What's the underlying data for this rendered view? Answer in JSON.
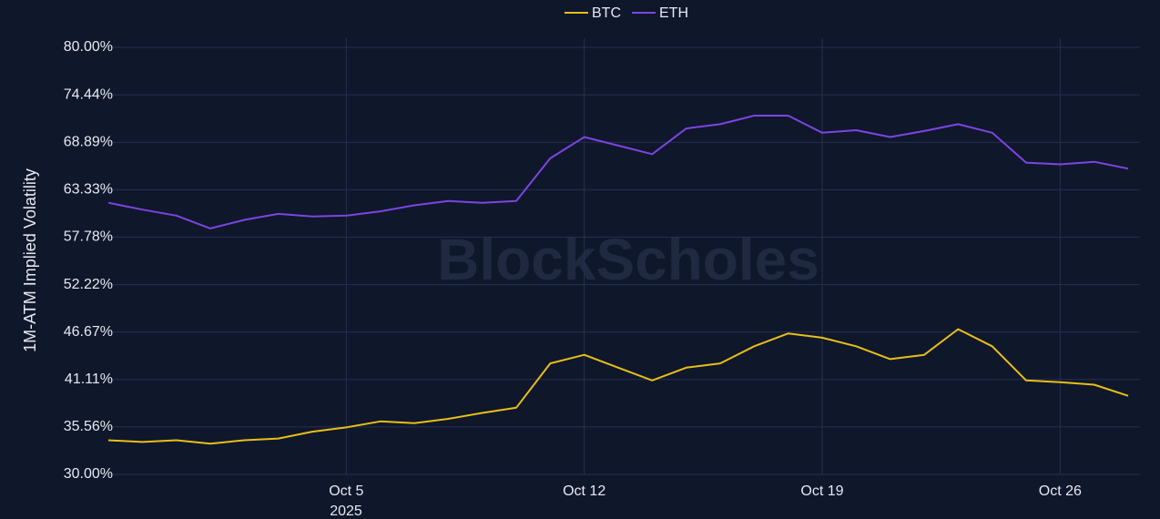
{
  "chart_data": {
    "type": "line",
    "y_axis_label": "1M-ATM Implied Volatility",
    "watermark": "BlockScholes",
    "x_year_label": "2025",
    "x": [
      "2025-09-28",
      "2025-09-29",
      "2025-09-30",
      "2025-10-01",
      "2025-10-02",
      "2025-10-03",
      "2025-10-04",
      "2025-10-05",
      "2025-10-06",
      "2025-10-07",
      "2025-10-08",
      "2025-10-09",
      "2025-10-10",
      "2025-10-11",
      "2025-10-12",
      "2025-10-13",
      "2025-10-14",
      "2025-10-15",
      "2025-10-16",
      "2025-10-17",
      "2025-10-18",
      "2025-10-19",
      "2025-10-20",
      "2025-10-21",
      "2025-10-22",
      "2025-10-23",
      "2025-10-24",
      "2025-10-25",
      "2025-10-26",
      "2025-10-27",
      "2025-10-28"
    ],
    "series": [
      {
        "name": "BTC",
        "color": "#e8bf17",
        "values": [
          34,
          33.8,
          34,
          33.6,
          34,
          34.2,
          35,
          35.5,
          36.2,
          36,
          36.5,
          37.2,
          37.8,
          43,
          44,
          42.5,
          41,
          42.5,
          43,
          45,
          46.5,
          46,
          45,
          43.5,
          44,
          47,
          45,
          41,
          40.8,
          40.5,
          39.2
        ]
      },
      {
        "name": "ETH",
        "color": "#7b45e0",
        "values": [
          61.8,
          61,
          60.3,
          58.8,
          59.8,
          60.5,
          60.2,
          60.3,
          60.8,
          61.5,
          62,
          61.8,
          62,
          67,
          69.5,
          68.5,
          67.5,
          70.5,
          71,
          72,
          72,
          70,
          70.3,
          69.5,
          70.2,
          71,
          70,
          66.5,
          66.3,
          66.6,
          65.8
        ]
      }
    ],
    "xlim": [
      "2025-09-28",
      "2025-10-28"
    ],
    "xticks": [
      {
        "value": "2025-10-05",
        "label": "Oct 5"
      },
      {
        "value": "2025-10-12",
        "label": "Oct 12"
      },
      {
        "value": "2025-10-19",
        "label": "Oct 19"
      },
      {
        "value": "2025-10-26",
        "label": "Oct 26"
      }
    ],
    "ylim": [
      30,
      80
    ],
    "yticks": [
      {
        "value": 30,
        "label": "30.00%"
      },
      {
        "value": 35.56,
        "label": "35.56%"
      },
      {
        "value": 41.11,
        "label": "41.11%"
      },
      {
        "value": 46.67,
        "label": "46.67%"
      },
      {
        "value": 52.22,
        "label": "52.22%"
      },
      {
        "value": 57.78,
        "label": "57.78%"
      },
      {
        "value": 63.33,
        "label": "63.33%"
      },
      {
        "value": 68.89,
        "label": "68.89%"
      },
      {
        "value": 74.44,
        "label": "74.44%"
      },
      {
        "value": 80,
        "label": "80.00%"
      }
    ],
    "grid": true
  }
}
